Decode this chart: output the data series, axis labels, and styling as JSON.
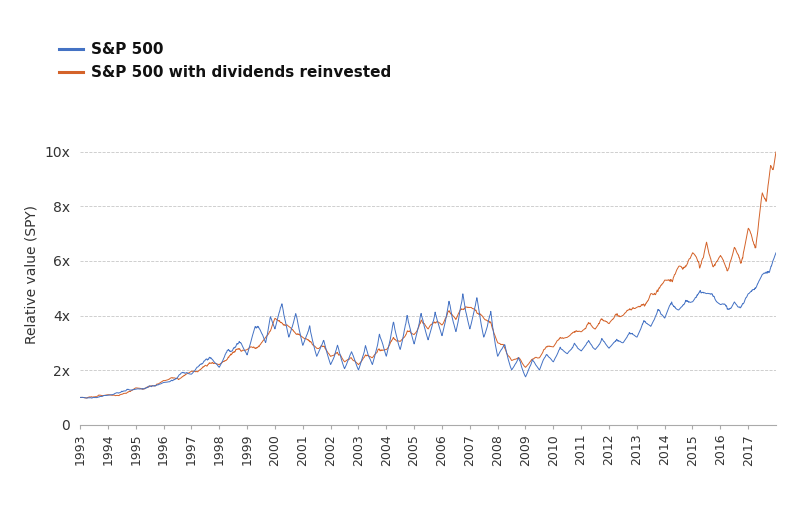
{
  "ylabel": "Relative value (SPY)",
  "legend_labels": [
    "S&P 500",
    "S&P 500 with dividends reinvested"
  ],
  "sp500_color": "#4472c4",
  "sp500_div_color": "#d4632a",
  "background_color": "#ffffff",
  "grid_color": "#c8c8c8",
  "yticks": [
    0,
    2,
    4,
    6,
    8,
    10
  ],
  "ytick_labels": [
    "0",
    "2x",
    "4x",
    "6x",
    "8x",
    "10x"
  ],
  "ylim": [
    0,
    11
  ],
  "xlim_start": 1993,
  "xlim_end": 2018,
  "year_ticks": [
    1993,
    1994,
    1995,
    1996,
    1997,
    1998,
    1999,
    2000,
    2001,
    2002,
    2003,
    2004,
    2005,
    2006,
    2007,
    2008,
    2009,
    2010,
    2011,
    2012,
    2013,
    2014,
    2015,
    2016,
    2017
  ]
}
